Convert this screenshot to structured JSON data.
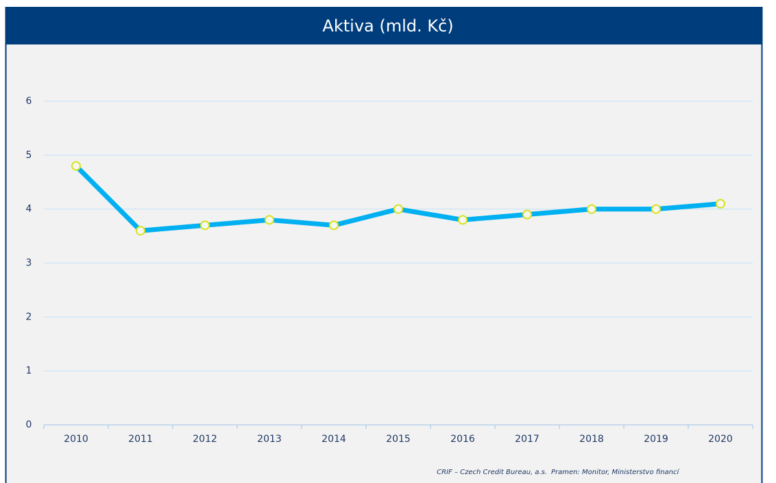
{
  "chart_data": {
    "type": "line",
    "title": "Aktiva (mld. Kč)",
    "categories": [
      "2010",
      "2011",
      "2012",
      "2013",
      "2014",
      "2015",
      "2016",
      "2017",
      "2018",
      "2019",
      "2020"
    ],
    "series": [
      {
        "name": "Aktiva",
        "color": "#00b0f0",
        "values": [
          4.8,
          3.6,
          3.7,
          3.8,
          3.7,
          4.0,
          3.8,
          3.9,
          4.0,
          4.0,
          4.1
        ]
      }
    ],
    "ylim": [
      0,
      6
    ],
    "yticks": [
      0,
      1,
      2,
      3,
      4,
      5,
      6
    ],
    "grid": true,
    "source": "CRIF – Czech Credit Bureau, a.s.",
    "note": "Pramen: Monitor, Ministerstvo financí"
  }
}
